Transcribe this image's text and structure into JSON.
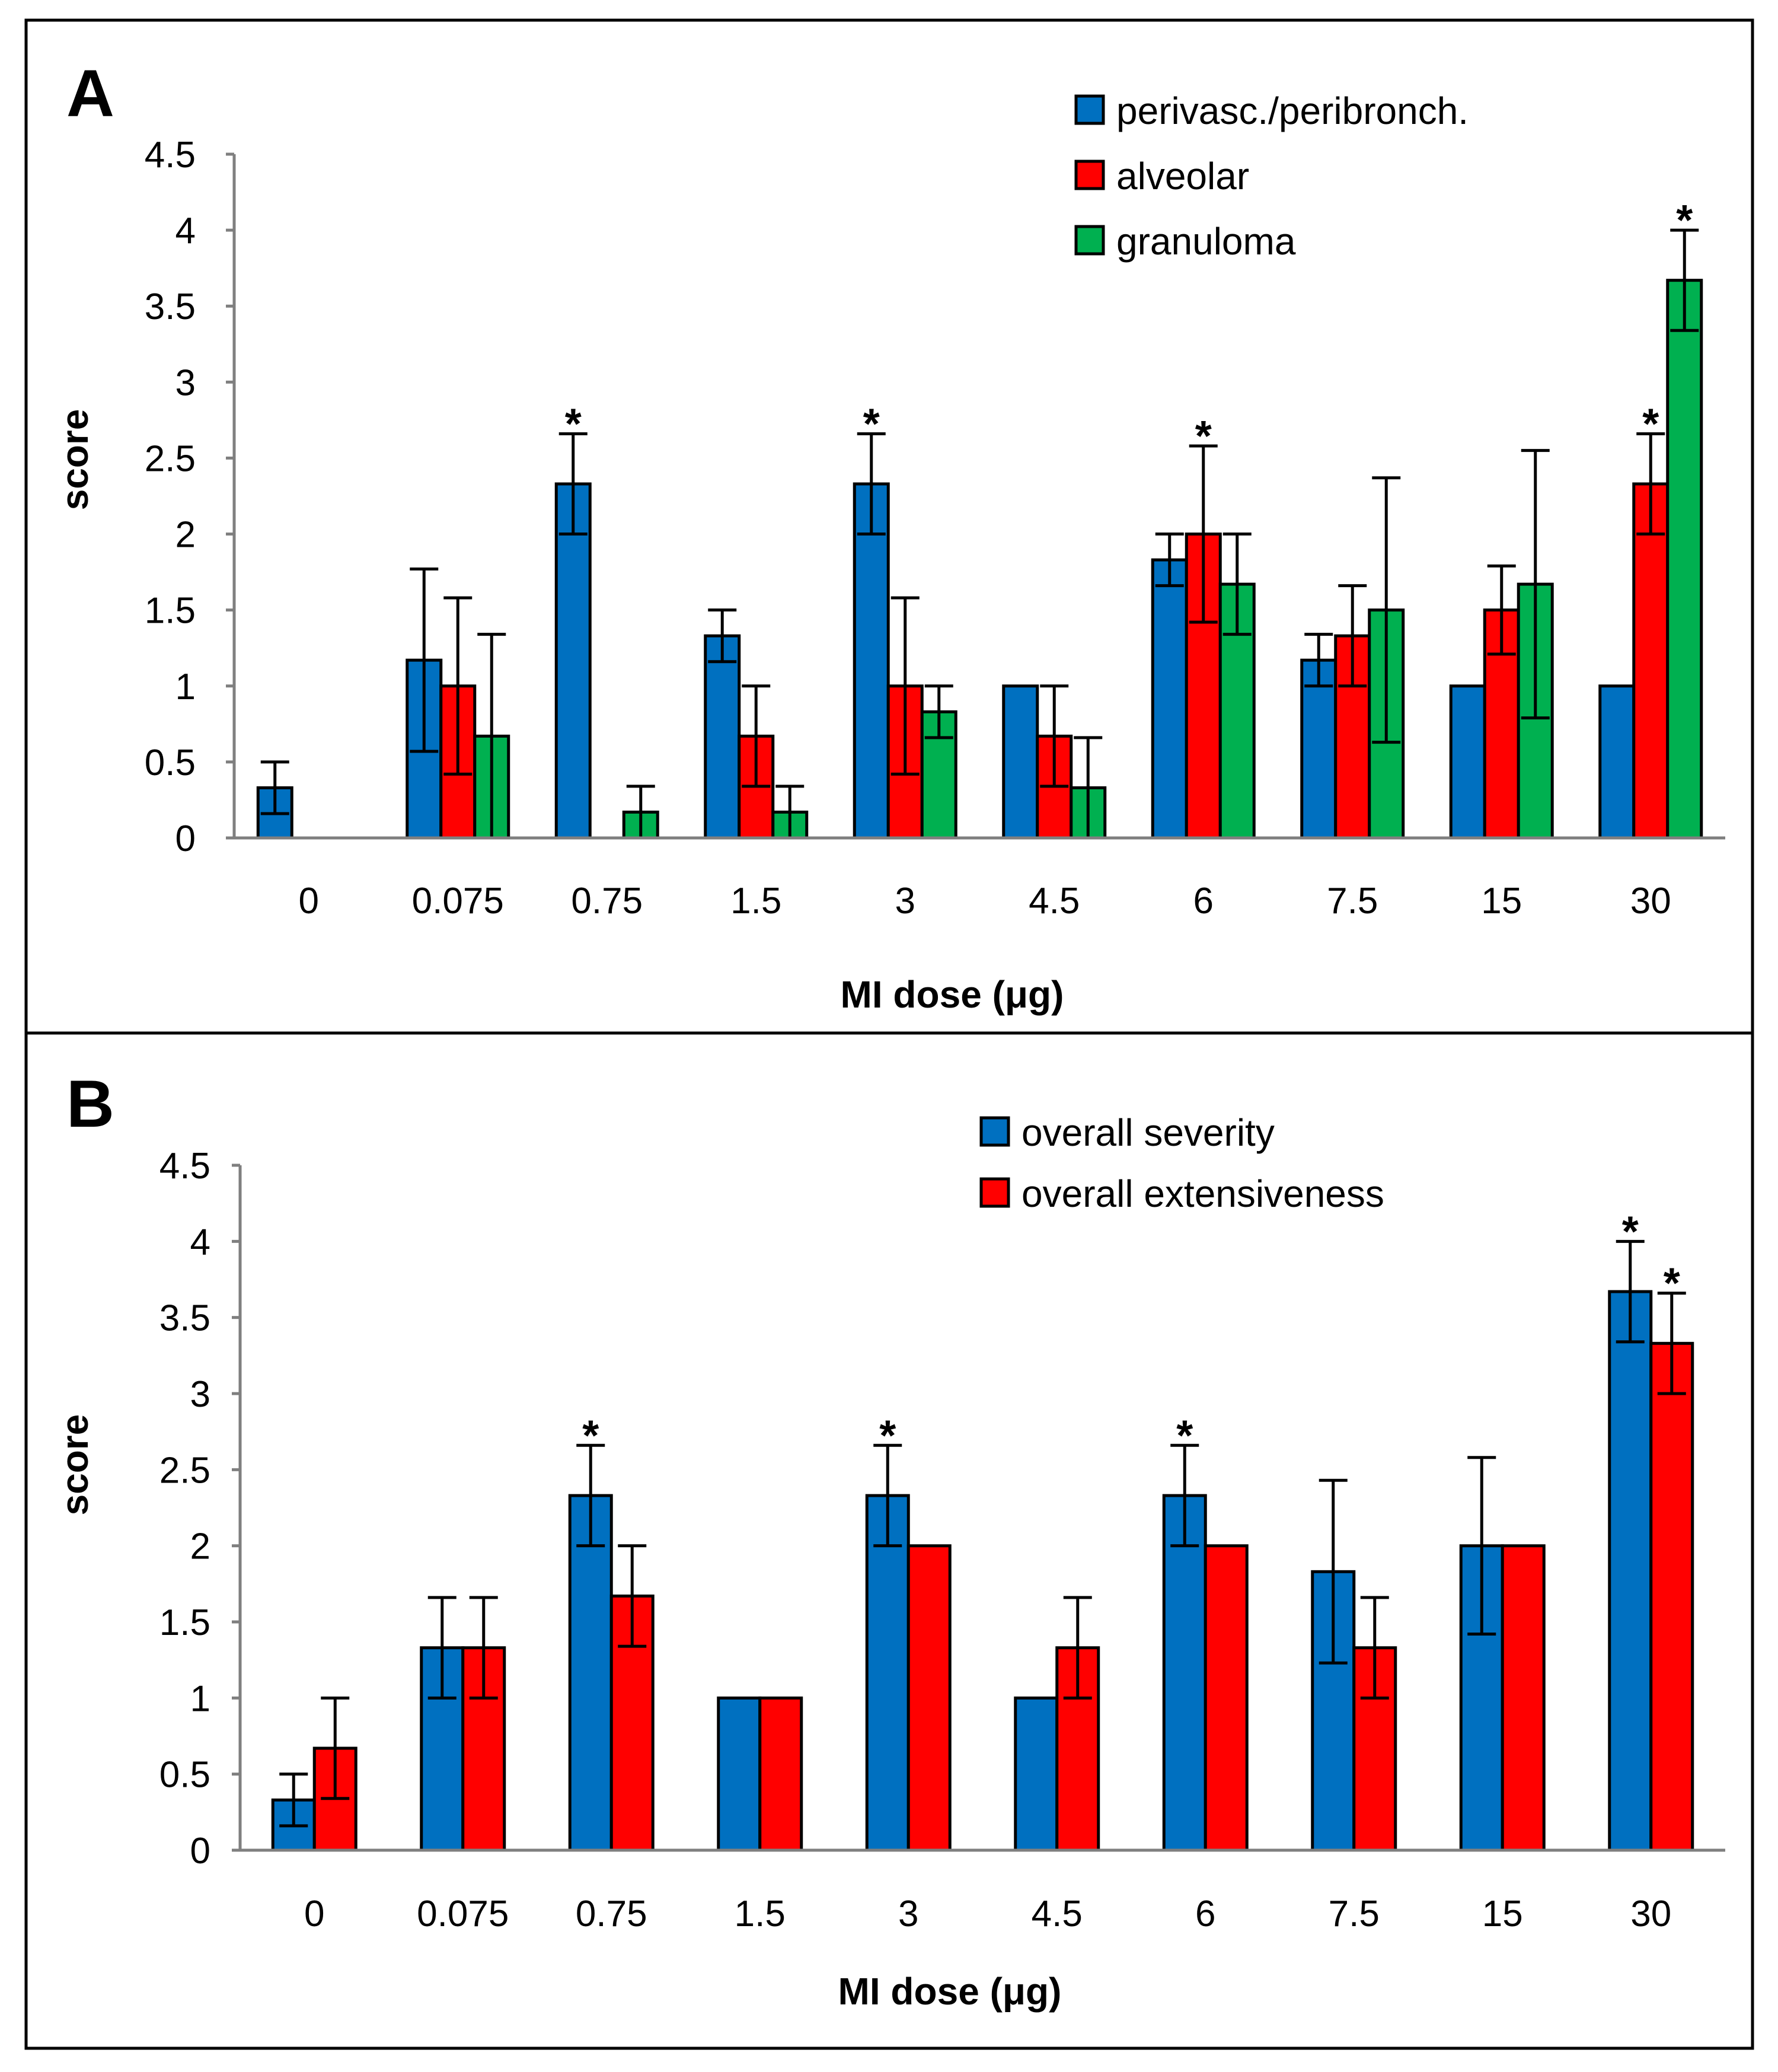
{
  "figure": {
    "background": "#ffffff"
  },
  "chart_data": [
    {
      "panel": "A",
      "type": "bar",
      "title": "",
      "xlabel": "MI dose (μg)",
      "ylabel": "score",
      "ylim": [
        0,
        4.5
      ],
      "yticks": [
        "0",
        "0.5",
        "1",
        "1.5",
        "2",
        "2.5",
        "3",
        "3.5",
        "4",
        "4.5"
      ],
      "categories": [
        "0",
        "0.075",
        "0.75",
        "1.5",
        "3",
        "4.5",
        "6",
        "7.5",
        "15",
        "30"
      ],
      "legend_position": "top-right",
      "series": [
        {
          "name": "perivasc./peribronch.",
          "color": "#0070c0",
          "values": [
            0.33,
            1.17,
            2.33,
            1.33,
            2.33,
            1.0,
            1.83,
            1.17,
            1.0,
            1.0
          ],
          "errors": [
            0.17,
            0.6,
            0.33,
            0.17,
            0.33,
            0,
            0.17,
            0.17,
            0,
            0
          ],
          "significant": [
            false,
            false,
            true,
            false,
            true,
            false,
            false,
            false,
            false,
            false
          ]
        },
        {
          "name": "alveolar",
          "color": "#ff0000",
          "values": [
            0,
            1.0,
            0,
            0.67,
            1.0,
            0.67,
            2.0,
            1.33,
            1.5,
            2.33
          ],
          "errors": [
            0,
            0.58,
            0,
            0.33,
            0.58,
            0.33,
            0.58,
            0.33,
            0.29,
            0.33
          ],
          "significant": [
            false,
            false,
            false,
            false,
            false,
            false,
            true,
            false,
            false,
            true
          ]
        },
        {
          "name": "granuloma",
          "color": "#00b050",
          "values": [
            0,
            0.67,
            0.17,
            0.17,
            0.83,
            0.33,
            1.67,
            1.5,
            1.67,
            3.67
          ],
          "errors": [
            0,
            0.67,
            0.17,
            0.17,
            0.17,
            0.33,
            0.33,
            0.87,
            0.88,
            0.33
          ],
          "significant": [
            false,
            false,
            false,
            false,
            false,
            false,
            false,
            false,
            false,
            true
          ]
        }
      ]
    },
    {
      "panel": "B",
      "type": "bar",
      "title": "",
      "xlabel": "MI dose (μg)",
      "ylabel": "score",
      "ylim": [
        0,
        4.5
      ],
      "yticks": [
        "0",
        "0.5",
        "1",
        "1.5",
        "2",
        "2.5",
        "3",
        "3.5",
        "4",
        "4.5"
      ],
      "categories": [
        "0",
        "0.075",
        "0.75",
        "1.5",
        "3",
        "4.5",
        "6",
        "7.5",
        "15",
        "30"
      ],
      "legend_position": "top-right",
      "series": [
        {
          "name": "overall severity",
          "color": "#0070c0",
          "values": [
            0.33,
            1.33,
            2.33,
            1.0,
            2.33,
            1.0,
            2.33,
            1.83,
            2.0,
            3.67
          ],
          "errors": [
            0.17,
            0.33,
            0.33,
            0,
            0.33,
            0,
            0.33,
            0.6,
            0.58,
            0.33
          ],
          "significant": [
            false,
            false,
            true,
            false,
            true,
            false,
            true,
            false,
            false,
            true
          ]
        },
        {
          "name": "overall extensiveness",
          "color": "#ff0000",
          "values": [
            0.67,
            1.33,
            1.67,
            1.0,
            2.0,
            1.33,
            2.0,
            1.33,
            2.0,
            3.33
          ],
          "errors": [
            0.33,
            0.33,
            0.33,
            0,
            0,
            0.33,
            0,
            0.33,
            0,
            0.33
          ],
          "significant": [
            false,
            false,
            false,
            false,
            false,
            false,
            false,
            false,
            false,
            true
          ]
        }
      ]
    }
  ],
  "significance_marker": "*"
}
